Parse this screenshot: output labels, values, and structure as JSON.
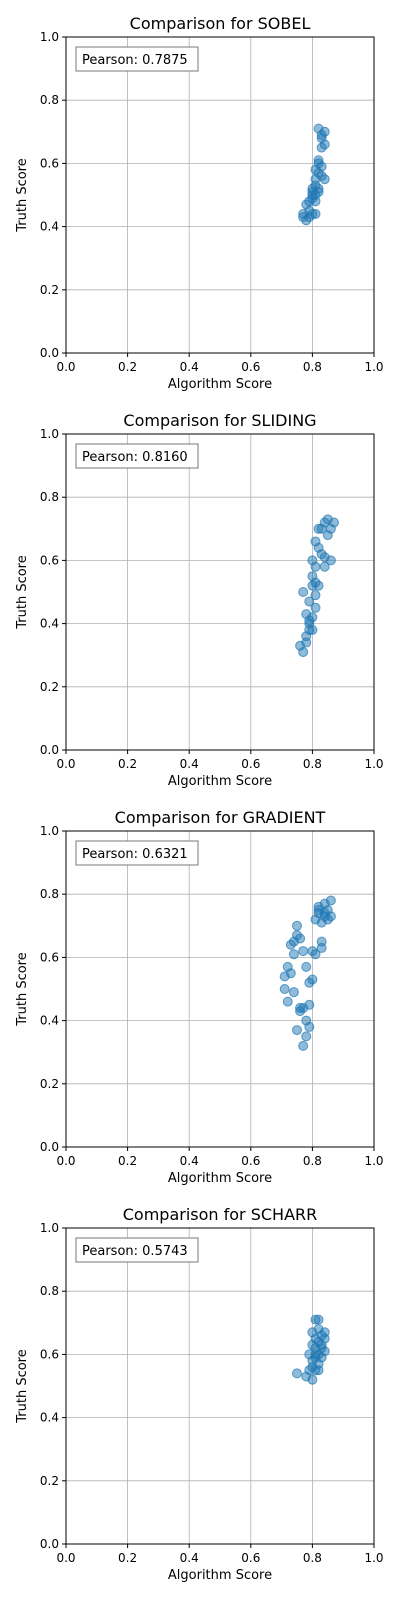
{
  "chart_data": [
    {
      "type": "scatter",
      "title": "Comparison for SOBEL",
      "xlabel": "Algorithm Score",
      "ylabel": "Truth Score",
      "xlim": [
        0,
        1
      ],
      "ylim": [
        0,
        1
      ],
      "xticks": [
        "0.0",
        "0.2",
        "0.4",
        "0.6",
        "0.8",
        "1.0"
      ],
      "yticks": [
        "0.0",
        "0.2",
        "0.4",
        "0.6",
        "0.8",
        "1.0"
      ],
      "grid": true,
      "annotation": "Pearson: 0.7875",
      "color": "#1f77b4",
      "points": [
        [
          0.77,
          0.44
        ],
        [
          0.77,
          0.43
        ],
        [
          0.78,
          0.42
        ],
        [
          0.78,
          0.47
        ],
        [
          0.79,
          0.48
        ],
        [
          0.79,
          0.45
        ],
        [
          0.79,
          0.43
        ],
        [
          0.8,
          0.49
        ],
        [
          0.8,
          0.51
        ],
        [
          0.8,
          0.44
        ],
        [
          0.8,
          0.52
        ],
        [
          0.81,
          0.5
        ],
        [
          0.81,
          0.53
        ],
        [
          0.81,
          0.55
        ],
        [
          0.81,
          0.58
        ],
        [
          0.82,
          0.6
        ],
        [
          0.82,
          0.57
        ],
        [
          0.82,
          0.51
        ],
        [
          0.82,
          0.61
        ],
        [
          0.83,
          0.56
        ],
        [
          0.83,
          0.65
        ],
        [
          0.83,
          0.68
        ],
        [
          0.84,
          0.66
        ],
        [
          0.84,
          0.7
        ],
        [
          0.82,
          0.71
        ],
        [
          0.83,
          0.69
        ],
        [
          0.81,
          0.44
        ],
        [
          0.8,
          0.5
        ],
        [
          0.81,
          0.48
        ],
        [
          0.82,
          0.52
        ],
        [
          0.84,
          0.55
        ],
        [
          0.83,
          0.59
        ]
      ]
    },
    {
      "type": "scatter",
      "title": "Comparison for SLIDING",
      "xlabel": "Algorithm Score",
      "ylabel": "Truth Score",
      "xlim": [
        0,
        1
      ],
      "ylim": [
        0,
        1
      ],
      "xticks": [
        "0.0",
        "0.2",
        "0.4",
        "0.6",
        "0.8",
        "1.0"
      ],
      "yticks": [
        "0.0",
        "0.2",
        "0.4",
        "0.6",
        "0.8",
        "1.0"
      ],
      "grid": true,
      "annotation": "Pearson: 0.8160",
      "color": "#1f77b4",
      "points": [
        [
          0.76,
          0.33
        ],
        [
          0.77,
          0.31
        ],
        [
          0.78,
          0.34
        ],
        [
          0.78,
          0.36
        ],
        [
          0.79,
          0.38
        ],
        [
          0.79,
          0.4
        ],
        [
          0.8,
          0.42
        ],
        [
          0.78,
          0.43
        ],
        [
          0.77,
          0.5
        ],
        [
          0.79,
          0.47
        ],
        [
          0.8,
          0.52
        ],
        [
          0.8,
          0.55
        ],
        [
          0.81,
          0.49
        ],
        [
          0.81,
          0.58
        ],
        [
          0.8,
          0.6
        ],
        [
          0.81,
          0.45
        ],
        [
          0.82,
          0.52
        ],
        [
          0.82,
          0.64
        ],
        [
          0.83,
          0.62
        ],
        [
          0.84,
          0.58
        ],
        [
          0.84,
          0.61
        ],
        [
          0.83,
          0.7
        ],
        [
          0.84,
          0.72
        ],
        [
          0.85,
          0.68
        ],
        [
          0.86,
          0.7
        ],
        [
          0.87,
          0.72
        ],
        [
          0.86,
          0.6
        ],
        [
          0.82,
          0.7
        ],
        [
          0.85,
          0.73
        ],
        [
          0.81,
          0.66
        ],
        [
          0.79,
          0.41
        ],
        [
          0.8,
          0.38
        ],
        [
          0.81,
          0.53
        ]
      ]
    },
    {
      "type": "scatter",
      "title": "Comparison for GRADIENT",
      "xlabel": "Algorithm Score",
      "ylabel": "Truth Score",
      "xlim": [
        0,
        1
      ],
      "ylim": [
        0,
        1
      ],
      "xticks": [
        "0.0",
        "0.2",
        "0.4",
        "0.6",
        "0.8",
        "1.0"
      ],
      "yticks": [
        "0.0",
        "0.2",
        "0.4",
        "0.6",
        "0.8",
        "1.0"
      ],
      "grid": true,
      "annotation": "Pearson: 0.6321",
      "color": "#1f77b4",
      "points": [
        [
          0.71,
          0.54
        ],
        [
          0.71,
          0.5
        ],
        [
          0.72,
          0.46
        ],
        [
          0.72,
          0.57
        ],
        [
          0.73,
          0.55
        ],
        [
          0.73,
          0.64
        ],
        [
          0.74,
          0.61
        ],
        [
          0.74,
          0.49
        ],
        [
          0.75,
          0.67
        ],
        [
          0.75,
          0.37
        ],
        [
          0.75,
          0.7
        ],
        [
          0.76,
          0.43
        ],
        [
          0.76,
          0.66
        ],
        [
          0.77,
          0.32
        ],
        [
          0.77,
          0.44
        ],
        [
          0.77,
          0.62
        ],
        [
          0.78,
          0.35
        ],
        [
          0.78,
          0.4
        ],
        [
          0.78,
          0.57
        ],
        [
          0.79,
          0.45
        ],
        [
          0.79,
          0.52
        ],
        [
          0.79,
          0.38
        ],
        [
          0.8,
          0.53
        ],
        [
          0.8,
          0.62
        ],
        [
          0.81,
          0.61
        ],
        [
          0.81,
          0.72
        ],
        [
          0.82,
          0.75
        ],
        [
          0.82,
          0.76
        ],
        [
          0.83,
          0.71
        ],
        [
          0.83,
          0.65
        ],
        [
          0.83,
          0.63
        ],
        [
          0.84,
          0.74
        ],
        [
          0.84,
          0.77
        ],
        [
          0.85,
          0.72
        ],
        [
          0.85,
          0.75
        ],
        [
          0.86,
          0.78
        ],
        [
          0.86,
          0.73
        ],
        [
          0.82,
          0.74
        ],
        [
          0.84,
          0.73
        ],
        [
          0.74,
          0.65
        ],
        [
          0.76,
          0.44
        ]
      ]
    },
    {
      "type": "scatter",
      "title": "Comparison for SCHARR",
      "xlabel": "Algorithm Score",
      "ylabel": "Truth Score",
      "xlim": [
        0,
        1
      ],
      "ylim": [
        0,
        1
      ],
      "xticks": [
        "0.0",
        "0.2",
        "0.4",
        "0.6",
        "0.8",
        "1.0"
      ],
      "yticks": [
        "0.0",
        "0.2",
        "0.4",
        "0.6",
        "0.8",
        "1.0"
      ],
      "grid": true,
      "annotation": "Pearson: 0.5743",
      "color": "#1f77b4",
      "points": [
        [
          0.75,
          0.54
        ],
        [
          0.78,
          0.53
        ],
        [
          0.79,
          0.55
        ],
        [
          0.79,
          0.6
        ],
        [
          0.8,
          0.52
        ],
        [
          0.8,
          0.56
        ],
        [
          0.8,
          0.63
        ],
        [
          0.8,
          0.67
        ],
        [
          0.81,
          0.55
        ],
        [
          0.81,
          0.59
        ],
        [
          0.81,
          0.62
        ],
        [
          0.81,
          0.71
        ],
        [
          0.81,
          0.65
        ],
        [
          0.82,
          0.57
        ],
        [
          0.82,
          0.6
        ],
        [
          0.82,
          0.64
        ],
        [
          0.82,
          0.68
        ],
        [
          0.82,
          0.71
        ],
        [
          0.83,
          0.62
        ],
        [
          0.83,
          0.66
        ],
        [
          0.83,
          0.63
        ],
        [
          0.84,
          0.65
        ],
        [
          0.84,
          0.67
        ],
        [
          0.84,
          0.61
        ],
        [
          0.82,
          0.55
        ],
        [
          0.83,
          0.59
        ],
        [
          0.81,
          0.6
        ],
        [
          0.8,
          0.58
        ]
      ]
    }
  ]
}
